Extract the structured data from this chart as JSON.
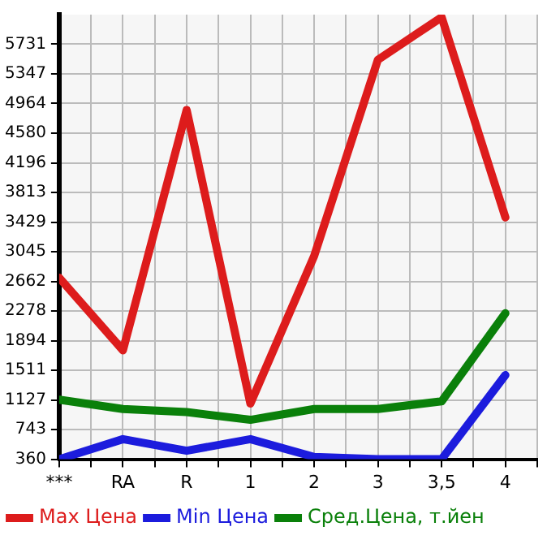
{
  "chart_data": {
    "type": "line",
    "categories": [
      "***",
      "RA",
      "R",
      "1",
      "2",
      "3",
      "3,5",
      "4"
    ],
    "series": [
      {
        "name": "Max Цена",
        "color": "#dd1c1c",
        "values": [
          2710,
          1770,
          4880,
          1080,
          2990,
          5530,
          6080,
          3490
        ]
      },
      {
        "name": "Min Цена",
        "color": "#1c1cdd",
        "values": [
          360,
          620,
          470,
          620,
          390,
          360,
          360,
          1450
        ]
      },
      {
        "name": "Сред.Цена, т.йен",
        "color": "#0a800a",
        "values": [
          1130,
          1010,
          970,
          870,
          1010,
          1010,
          1110,
          2250
        ]
      }
    ],
    "ylim": [
      360,
      6114
    ],
    "yticks": [
      360,
      743,
      1127,
      1511,
      1894,
      2278,
      2662,
      3045,
      3429,
      3813,
      4196,
      4580,
      4964,
      5347,
      5731
    ],
    "grid": true,
    "legend": "bottom",
    "marker": "none",
    "line_style": "solid"
  }
}
